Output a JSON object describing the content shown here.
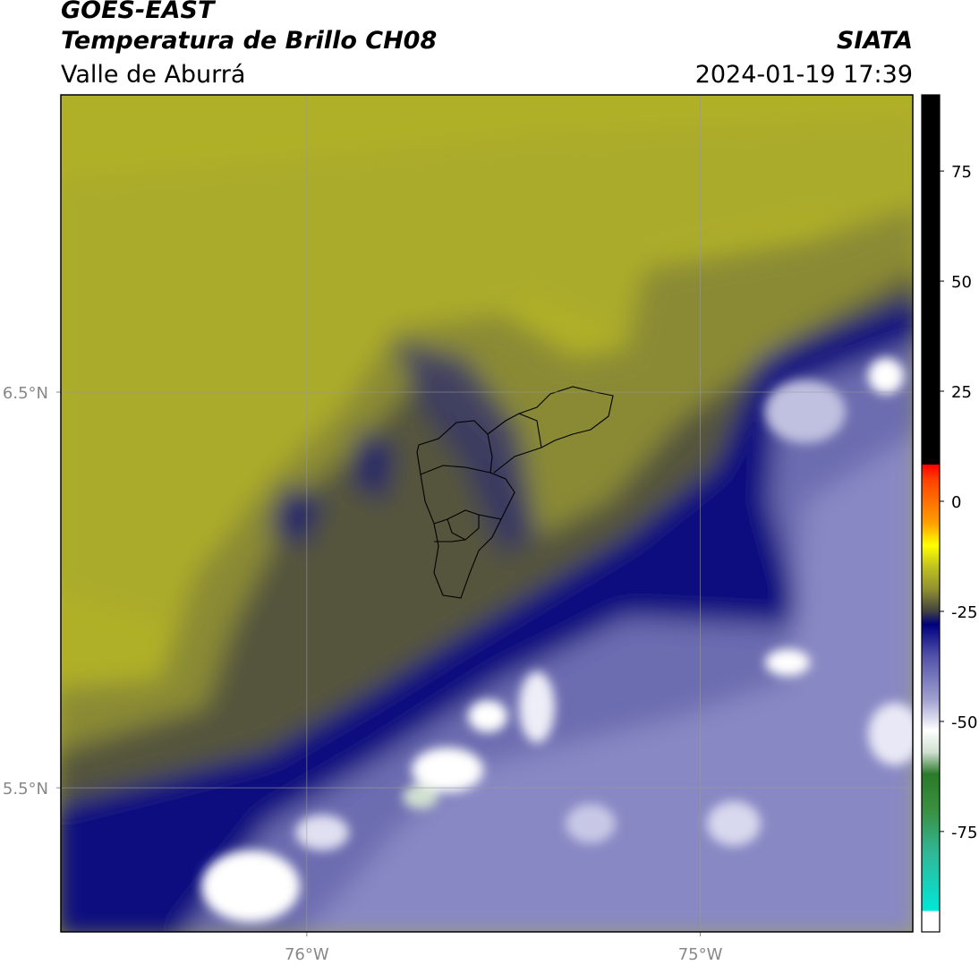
{
  "header": {
    "title": "GOES-EAST",
    "subtitle": "Temperatura de Brillo CH08",
    "region": "Valle de Aburrá",
    "source": "SIATA",
    "datetime": "2024-01-19 17:39"
  },
  "map": {
    "xlim": [
      -76.625,
      -74.46
    ],
    "ylim": [
      5.136,
      7.251
    ],
    "xticks": [
      {
        "value": -76,
        "label": "76°W"
      },
      {
        "value": -75,
        "label": "75°W"
      }
    ],
    "yticks": [
      {
        "value": 6.5,
        "label": "6.5°N"
      },
      {
        "value": 5.5,
        "label": "5.5°N"
      }
    ],
    "grid": true
  },
  "colorbar": {
    "clim": [
      -97.8,
      92.3
    ],
    "ticks": [
      75,
      50,
      25,
      0,
      -25,
      -50,
      -75
    ],
    "stops": [
      {
        "value": -93.1,
        "color": "#ffffff"
      },
      {
        "value": -93,
        "color": "#00e8d8"
      },
      {
        "value": -80,
        "color": "#30b898"
      },
      {
        "value": -70,
        "color": "#3a9040"
      },
      {
        "value": -62,
        "color": "#2a7a2a"
      },
      {
        "value": -57,
        "color": "#d0e0d0"
      },
      {
        "value": -52,
        "color": "#ffffff"
      },
      {
        "value": -45,
        "color": "#a0a0d0"
      },
      {
        "value": -35,
        "color": "#5050a8"
      },
      {
        "value": -28,
        "color": "#000080"
      },
      {
        "value": -25,
        "color": "#404040"
      },
      {
        "value": -20,
        "color": "#909030"
      },
      {
        "value": -15,
        "color": "#c0c020"
      },
      {
        "value": -10,
        "color": "#ffff00"
      },
      {
        "value": -5,
        "color": "#ffa000"
      },
      {
        "value": 5,
        "color": "#ff4000"
      },
      {
        "value": 8.3,
        "color": "#ff0000"
      },
      {
        "value": 8.4,
        "color": "#000000"
      }
    ]
  }
}
